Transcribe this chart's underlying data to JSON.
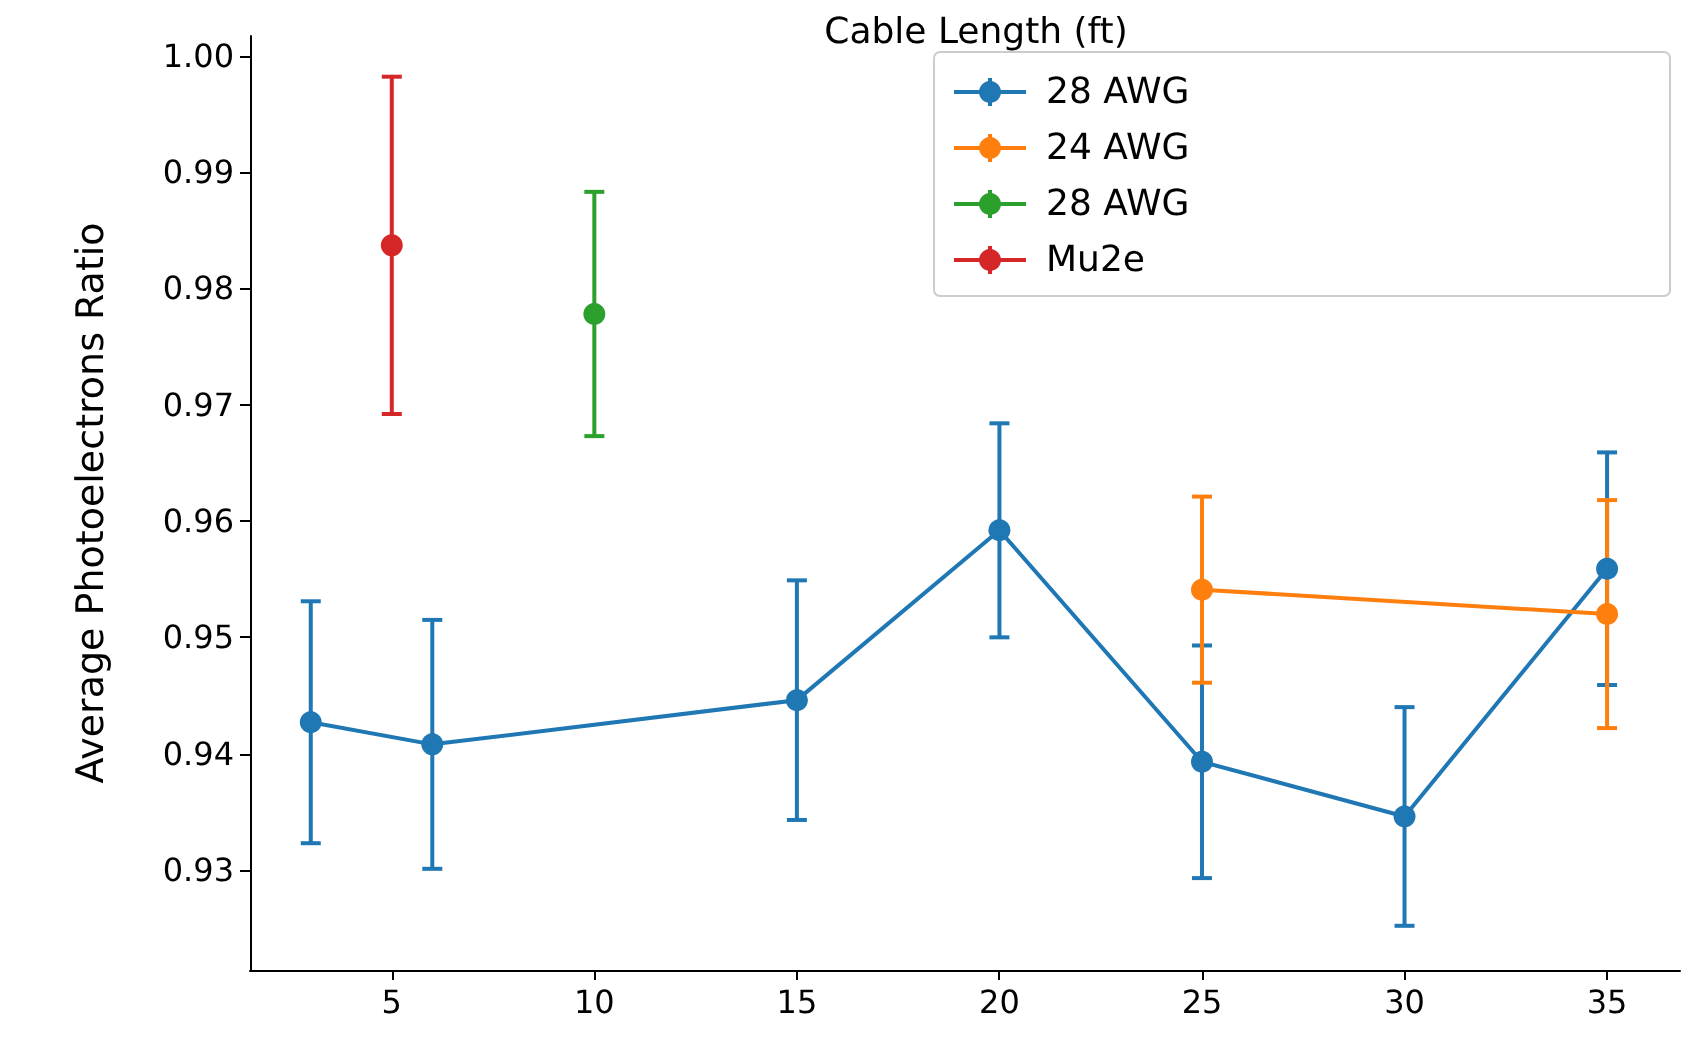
{
  "chart_data": {
    "type": "line",
    "title": "Cable Length (ft)",
    "ylabel": "Average Photoelectrons Ratio",
    "xlim": [
      1.5,
      36.8
    ],
    "xticks": [
      5,
      10,
      15,
      20,
      25,
      30,
      35
    ],
    "ylim": [
      0.9214,
      1.0017
    ],
    "yticks": [
      0.93,
      0.94,
      0.95,
      0.96,
      0.97,
      0.98,
      0.99,
      {
        "value": 1,
        "label": "1.00"
      }
    ],
    "grid": false,
    "legend": "top right",
    "marker": "circle",
    "line_style": "solid",
    "series": [
      {
        "name": "28 AWG",
        "color": "#1f77b4",
        "x": [
          3,
          6,
          15,
          20,
          25,
          30,
          35
        ],
        "values": [
          0.9427,
          0.9408,
          0.9446,
          0.9592,
          0.9393,
          0.9346,
          0.9559
        ],
        "errors": [
          0.0104,
          0.0107,
          0.0103,
          0.0092,
          0.01,
          0.0094,
          0.01
        ]
      },
      {
        "name": "24 AWG",
        "color": "#ff7f0e",
        "x": [
          25,
          35
        ],
        "values": [
          0.9541,
          0.952
        ],
        "errors": [
          0.008,
          0.0098
        ]
      },
      {
        "name": "28 AWG",
        "color": "#2ca02c",
        "x": [
          10
        ],
        "values": [
          0.9778
        ],
        "errors": [
          0.0105
        ]
      },
      {
        "name": "Mu2e",
        "color": "#d62728",
        "x": [
          5
        ],
        "values": [
          0.9837
        ],
        "errors": [
          0.0145
        ]
      }
    ]
  }
}
